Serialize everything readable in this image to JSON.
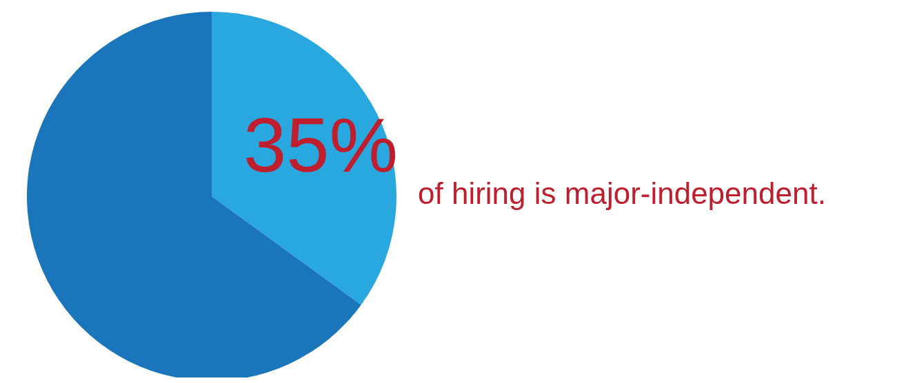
{
  "chart_data": {
    "type": "pie",
    "categories": [
      null,
      null
    ],
    "values": [
      35,
      65
    ],
    "colors": [
      "#29a8e0",
      "#1b75bb"
    ],
    "value_labels": [
      "35%",
      null
    ],
    "annotations": [
      "of hiring is major-independent."
    ],
    "legend": false
  }
}
